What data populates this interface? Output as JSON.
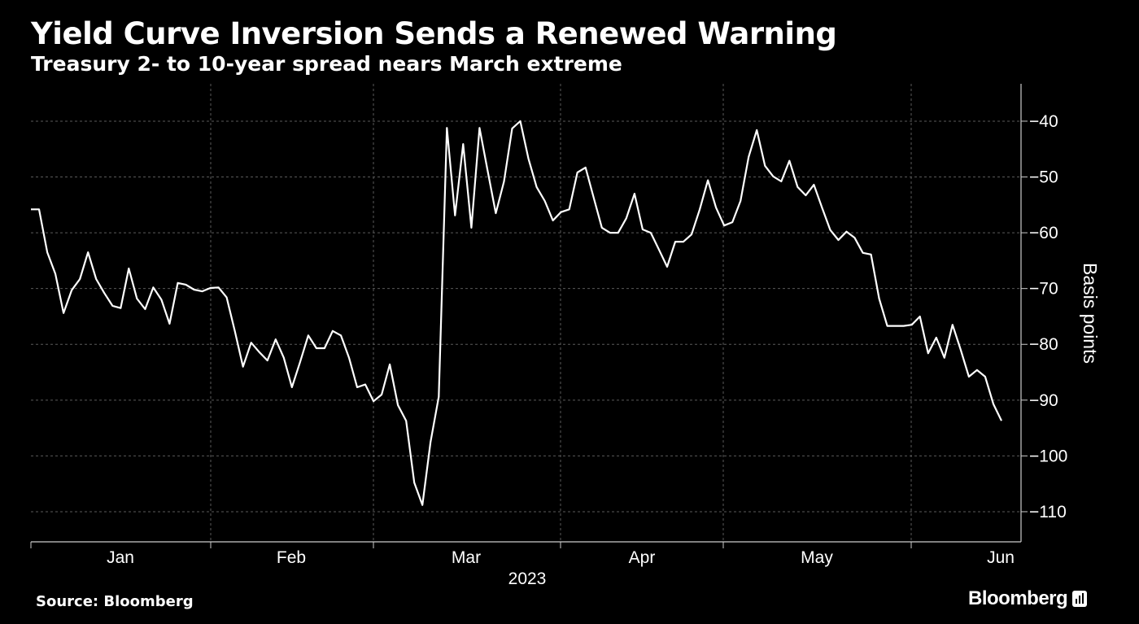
{
  "header": {
    "title": "Yield Curve Inversion Sends a Renewed Warning",
    "subtitle": "Treasury 2- to 10-year spread nears March extreme"
  },
  "footer": {
    "source": "Source: Bloomberg",
    "logo": "Bloomberg"
  },
  "chart_data": {
    "type": "line",
    "title": "Yield Curve Inversion Sends a Renewed Warning",
    "subtitle": "Treasury 2- to 10-year spread nears March extreme",
    "ylabel": "Basis points",
    "xlabel": "2023",
    "x_ticks": [
      "Jan",
      "Feb",
      "Mar",
      "Apr",
      "May",
      "Jun"
    ],
    "y_ticks": [
      -40,
      -50,
      -60,
      -70,
      -80,
      -90,
      -100,
      -110
    ],
    "ylim": [
      -115.4,
      -33.3
    ],
    "y_axis_side": "right",
    "grid": true,
    "line_color": "#ffffff",
    "background": "#000000",
    "values": [
      -55.8,
      -55.8,
      -63.5,
      -67.4,
      -74.4,
      -70.3,
      -68.3,
      -63.5,
      -68.3,
      -70.8,
      -73.1,
      -73.5,
      -66.4,
      -71.8,
      -73.7,
      -69.8,
      -72,
      -76.3,
      -69,
      -69.3,
      -70.2,
      -70.5,
      -69.9,
      -69.8,
      -71.6,
      -77.6,
      -84,
      -79.7,
      -81.4,
      -82.9,
      -79.1,
      -82.4,
      -87.7,
      -83.2,
      -78.4,
      -80.7,
      -80.7,
      -77.6,
      -78.4,
      -82.4,
      -87.7,
      -87.2,
      -90.2,
      -89,
      -83.6,
      -90.9,
      -93.7,
      -104.8,
      -108.8,
      -97.5,
      -89.4,
      -41.2,
      -56.9,
      -44.1,
      -59.1,
      -41.2,
      -48.9,
      -56.5,
      -50.8,
      -41.3,
      -40,
      -46.7,
      -51.8,
      -54.3,
      -57.8,
      -56.3,
      -55.8,
      -49.2,
      -48.3,
      -53.7,
      -59.1,
      -60,
      -60,
      -57.4,
      -53,
      -59.4,
      -60,
      -63,
      -66.1,
      -61.6,
      -61.6,
      -60.3,
      -55.8,
      -50.6,
      -55.5,
      -58.7,
      -58.1,
      -54.3,
      -46.4,
      -41.6,
      -48,
      -49.9,
      -50.8,
      -47.1,
      -51.8,
      -53.3,
      -51.4,
      -55.5,
      -59.5,
      -61.3,
      -59.8,
      -60.9,
      -63.6,
      -63.9,
      -71.8,
      -76.7,
      -76.7,
      -76.7,
      -76.5,
      -75,
      -81.6,
      -78.8,
      -82.4,
      -76.5,
      -81,
      -85.8,
      -84.6,
      -85.8,
      -90.7,
      -93.7
    ]
  }
}
